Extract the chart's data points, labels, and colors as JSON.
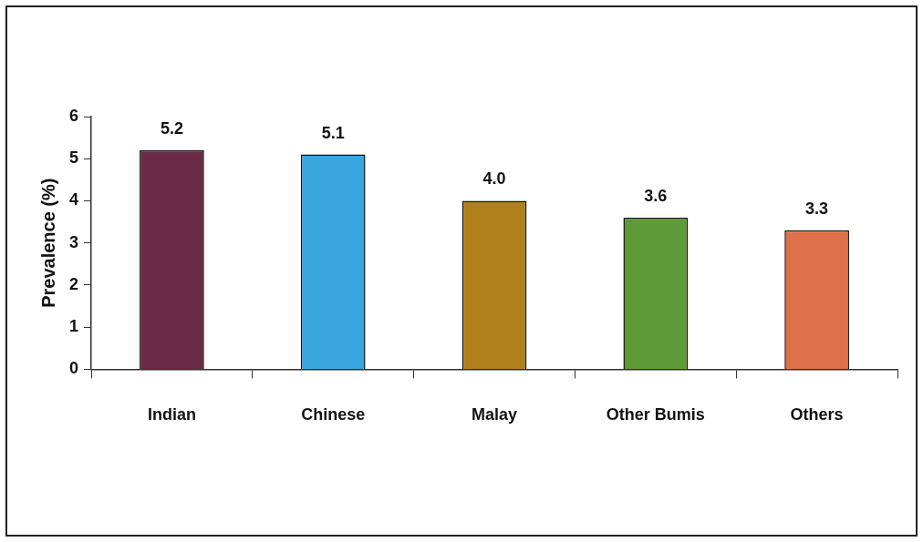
{
  "chart_data": {
    "type": "bar",
    "ylabel": "Prevalence (%)",
    "categories": [
      "Indian",
      "Chinese",
      "Malay",
      "Other Bumis",
      "Others"
    ],
    "values": [
      5.2,
      5.1,
      4.0,
      3.6,
      3.3
    ],
    "value_labels": [
      "5.2",
      "5.1",
      "4.0",
      "3.6",
      "3.3"
    ],
    "colors": [
      "#6b2a45",
      "#3aa6e0",
      "#b0801c",
      "#5e9a36",
      "#e0704a"
    ],
    "ylim": [
      0,
      6
    ],
    "yticks": [
      0,
      1,
      2,
      3,
      4,
      5,
      6
    ],
    "grid": false,
    "legend": false
  }
}
